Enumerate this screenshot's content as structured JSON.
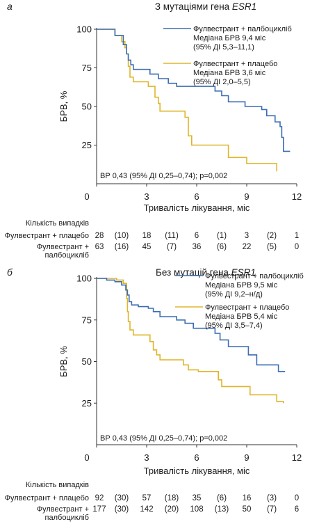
{
  "chart_data": [
    {
      "type": "line",
      "panel_letter": "а",
      "title_prefix": "З мутаціями гена ",
      "title_gene": "ESR1",
      "xlabel": "Тривалість лікування, міс",
      "ylabel": "БРВ, %",
      "xlim": [
        0,
        12
      ],
      "ylim": [
        0,
        100
      ],
      "x_ticks": [
        0,
        3,
        6,
        9,
        12
      ],
      "y_ticks": [
        25,
        50,
        75,
        100
      ],
      "annotation": "ВР 0,43 (95% ДІ 0,25–0,74); p=0,002",
      "series": [
        {
          "name": "Фулвестрант + палбоцикліб",
          "legend_lines": [
            "Фулвестрант + палбоцикліб",
            "Медіана БРВ 9,4 міс",
            "(95% ДІ 5,3–11,1)"
          ],
          "color": "#3b6db3",
          "points": [
            [
              0,
              100
            ],
            [
              1.1,
              100
            ],
            [
              1.1,
              96
            ],
            [
              1.6,
              96
            ],
            [
              1.6,
              90
            ],
            [
              1.8,
              90
            ],
            [
              1.8,
              84
            ],
            [
              1.9,
              84
            ],
            [
              1.9,
              80
            ],
            [
              2.05,
              80
            ],
            [
              2.05,
              77
            ],
            [
              2.2,
              77
            ],
            [
              2.2,
              74
            ],
            [
              3.2,
              74
            ],
            [
              3.2,
              71
            ],
            [
              3.7,
              71
            ],
            [
              3.7,
              68
            ],
            [
              4.3,
              68
            ],
            [
              4.3,
              65
            ],
            [
              4.8,
              65
            ],
            [
              4.8,
              63
            ],
            [
              7.1,
              63
            ],
            [
              7.1,
              60
            ],
            [
              7.5,
              60
            ],
            [
              7.5,
              57
            ],
            [
              7.9,
              57
            ],
            [
              7.9,
              53
            ],
            [
              8.9,
              53
            ],
            [
              8.9,
              50
            ],
            [
              9.9,
              50
            ],
            [
              9.9,
              48
            ],
            [
              10.2,
              48
            ],
            [
              10.2,
              44
            ],
            [
              10.7,
              44
            ],
            [
              10.7,
              40
            ],
            [
              11.0,
              40
            ],
            [
              11.0,
              37
            ],
            [
              11.1,
              37
            ],
            [
              11.1,
              30
            ],
            [
              11.2,
              30
            ],
            [
              11.2,
              21
            ],
            [
              11.6,
              21
            ]
          ]
        },
        {
          "name": "Фулвестрант + плацебо",
          "legend_lines": [
            "Фулвестрант + плацебо",
            "Медіана БРВ 3,6 міс",
            "(95% ДІ 2,0–5,5)"
          ],
          "color": "#e0b52a",
          "points": [
            [
              0,
              100
            ],
            [
              1.1,
              100
            ],
            [
              1.1,
              96
            ],
            [
              1.5,
              96
            ],
            [
              1.5,
              92
            ],
            [
              1.7,
              92
            ],
            [
              1.7,
              88
            ],
            [
              1.8,
              88
            ],
            [
              1.8,
              84
            ],
            [
              1.9,
              84
            ],
            [
              1.9,
              76
            ],
            [
              2.0,
              76
            ],
            [
              2.0,
              69
            ],
            [
              2.2,
              69
            ],
            [
              2.2,
              66
            ],
            [
              3.1,
              66
            ],
            [
              3.1,
              63
            ],
            [
              3.5,
              63
            ],
            [
              3.5,
              56
            ],
            [
              3.7,
              56
            ],
            [
              3.7,
              52
            ],
            [
              3.8,
              52
            ],
            [
              3.8,
              47
            ],
            [
              5.3,
              47
            ],
            [
              5.3,
              43
            ],
            [
              5.5,
              43
            ],
            [
              5.5,
              31
            ],
            [
              5.7,
              31
            ],
            [
              5.7,
              25
            ],
            [
              7.9,
              25
            ],
            [
              7.9,
              17
            ],
            [
              9.0,
              17
            ],
            [
              9.0,
              13
            ],
            [
              10.8,
              13
            ],
            [
              10.8,
              8
            ]
          ]
        }
      ],
      "risk_table": {
        "header": "Кількість випадків",
        "x": [
          0,
          1.5,
          3,
          4.5,
          6,
          7.5,
          9,
          10.5,
          12
        ],
        "rows": [
          {
            "label_lines": [
              "Фулвестрант + плацебо"
            ],
            "values": [
              "28",
              "(10)",
              "18",
              "(11)",
              "6",
              "(1)",
              "3",
              "(2)",
              "1"
            ]
          },
          {
            "label_lines": [
              "Фулвестрант +",
              "палбоцикліб"
            ],
            "values": [
              "63",
              "(16)",
              "45",
              "(7)",
              "36",
              "(6)",
              "22",
              "(5)",
              "0"
            ]
          }
        ]
      }
    },
    {
      "type": "line",
      "panel_letter": "б",
      "title_prefix": "Без мутацій гена ",
      "title_gene": "ESR1",
      "xlabel": "Тривалість лікування, міс",
      "ylabel": "БРВ, %",
      "xlim": [
        0,
        12
      ],
      "ylim": [
        0,
        100
      ],
      "x_ticks": [
        0,
        3,
        6,
        9,
        12
      ],
      "y_ticks": [
        25,
        50,
        75,
        100
      ],
      "annotation": "ВР 0,43 (95% ДІ 0,25–0,74); p=0,002",
      "series": [
        {
          "name": "Фулвестрант + палбоцикліб",
          "legend_lines": [
            "Фулвестрант + палбоцикліб",
            "Медіана БРВ 9,5 міс",
            "(95% ДІ 9,2–н/д)"
          ],
          "color": "#3b6db3",
          "points": [
            [
              0,
              100
            ],
            [
              0.6,
              100
            ],
            [
              0.6,
              99
            ],
            [
              1.1,
              99
            ],
            [
              1.1,
              98
            ],
            [
              1.5,
              98
            ],
            [
              1.5,
              96
            ],
            [
              1.75,
              96
            ],
            [
              1.75,
              93
            ],
            [
              1.85,
              93
            ],
            [
              1.85,
              90
            ],
            [
              1.95,
              90
            ],
            [
              1.95,
              86
            ],
            [
              2.1,
              86
            ],
            [
              2.1,
              84
            ],
            [
              2.5,
              84
            ],
            [
              2.5,
              83
            ],
            [
              3.1,
              83
            ],
            [
              3.1,
              82
            ],
            [
              3.4,
              82
            ],
            [
              3.4,
              80
            ],
            [
              3.8,
              80
            ],
            [
              3.8,
              77
            ],
            [
              4.8,
              77
            ],
            [
              4.8,
              75
            ],
            [
              5.3,
              75
            ],
            [
              5.3,
              73
            ],
            [
              5.8,
              73
            ],
            [
              5.8,
              70
            ],
            [
              7.1,
              70
            ],
            [
              7.1,
              67
            ],
            [
              7.4,
              67
            ],
            [
              7.4,
              63
            ],
            [
              7.9,
              63
            ],
            [
              7.9,
              59
            ],
            [
              9.1,
              59
            ],
            [
              9.1,
              54
            ],
            [
              9.6,
              54
            ],
            [
              9.6,
              48
            ],
            [
              10.9,
              48
            ],
            [
              10.9,
              44
            ],
            [
              11.3,
              44
            ]
          ]
        },
        {
          "name": "Фулвестрант + плацебо",
          "legend_lines": [
            "Фулвестрант + плацебо",
            "Медіана БРВ 5,4 міс",
            "(95% ДІ 3,5–7,4)"
          ],
          "color": "#e0b52a",
          "points": [
            [
              0,
              100
            ],
            [
              1.2,
              100
            ],
            [
              1.2,
              99
            ],
            [
              1.6,
              99
            ],
            [
              1.6,
              97
            ],
            [
              1.8,
              97
            ],
            [
              1.8,
              88
            ],
            [
              1.85,
              88
            ],
            [
              1.85,
              80
            ],
            [
              1.9,
              80
            ],
            [
              1.9,
              74
            ],
            [
              2.0,
              74
            ],
            [
              2.0,
              69
            ],
            [
              2.2,
              69
            ],
            [
              2.2,
              66
            ],
            [
              3.2,
              66
            ],
            [
              3.2,
              62
            ],
            [
              3.4,
              62
            ],
            [
              3.4,
              57
            ],
            [
              3.6,
              57
            ],
            [
              3.6,
              54
            ],
            [
              3.8,
              54
            ],
            [
              3.8,
              51
            ],
            [
              5.2,
              51
            ],
            [
              5.2,
              48
            ],
            [
              5.5,
              48
            ],
            [
              5.5,
              45
            ],
            [
              6.1,
              45
            ],
            [
              6.1,
              44
            ],
            [
              7.3,
              44
            ],
            [
              7.3,
              39
            ],
            [
              7.5,
              39
            ],
            [
              7.5,
              35
            ],
            [
              9.2,
              35
            ],
            [
              9.2,
              30
            ],
            [
              10.8,
              30
            ],
            [
              10.8,
              26
            ],
            [
              11.2,
              26
            ],
            [
              11.2,
              25
            ]
          ]
        }
      ],
      "risk_table": {
        "header": "Кількість випадків",
        "x": [
          0,
          1.5,
          3,
          4.5,
          6,
          7.5,
          9,
          10.5,
          12
        ],
        "rows": [
          {
            "label_lines": [
              "Фулвестрант + плацебо"
            ],
            "values": [
              "92",
              "(30)",
              "57",
              "(18)",
              "35",
              "(6)",
              "16",
              "(3)",
              "0"
            ]
          },
          {
            "label_lines": [
              "Фулвестрант +",
              "палбоцикліб"
            ],
            "values": [
              "177",
              "(30)",
              "142",
              "(20)",
              "108",
              "(13)",
              "50",
              "(7)",
              "6"
            ]
          }
        ]
      }
    }
  ]
}
